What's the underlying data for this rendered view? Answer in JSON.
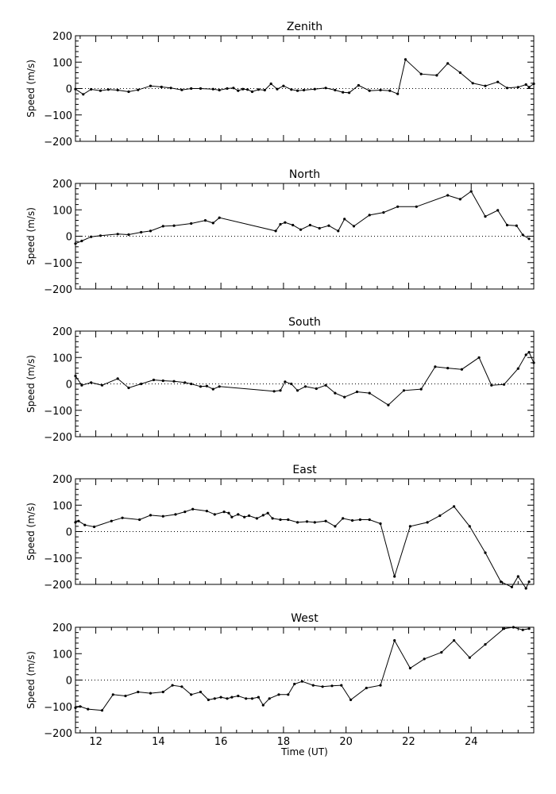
{
  "chart_data": [
    {
      "type": "line",
      "title": "Zenith",
      "xlabel": "",
      "ylabel": "Speed (m/s)",
      "xlim": [
        11.35,
        26.0
      ],
      "ylim": [
        -200,
        200
      ],
      "yticks": [
        "200",
        "100",
        "0",
        "−100",
        "−200"
      ],
      "xticks": [],
      "zero_line": "dotted",
      "x": [
        11.35,
        11.6,
        11.85,
        12.15,
        12.4,
        12.7,
        13.05,
        13.35,
        13.75,
        14.1,
        14.4,
        14.75,
        15.05,
        15.35,
        15.75,
        15.95,
        16.2,
        16.4,
        16.55,
        16.7,
        16.85,
        17.0,
        17.2,
        17.4,
        17.6,
        17.8,
        18.0,
        18.25,
        18.45,
        18.65,
        19.0,
        19.35,
        19.65,
        19.9,
        20.1,
        20.4,
        20.75,
        21.1,
        21.4,
        21.65,
        21.9,
        22.4,
        22.9,
        23.25,
        23.65,
        24.05,
        24.45,
        24.85,
        25.15,
        25.5,
        25.75,
        25.85,
        26.0
      ],
      "values": [
        -2,
        -22,
        -3,
        -8,
        -4,
        -6,
        -12,
        -5,
        10,
        6,
        2,
        -5,
        0,
        0,
        -2,
        -6,
        0,
        2,
        -8,
        -2,
        -4,
        -12,
        -4,
        -6,
        18,
        -2,
        10,
        -4,
        -8,
        -6,
        -2,
        2,
        -6,
        -14,
        -16,
        12,
        -8,
        -6,
        -8,
        -20,
        110,
        55,
        50,
        95,
        60,
        20,
        10,
        25,
        2,
        5,
        15,
        5,
        18
      ]
    },
    {
      "type": "line",
      "title": "North",
      "xlabel": "",
      "ylabel": "Speed (m/s)",
      "xlim": [
        11.35,
        26.0
      ],
      "ylim": [
        -200,
        200
      ],
      "yticks": [
        "200",
        "100",
        "0",
        "−100",
        "−200"
      ],
      "xticks": [],
      "zero_line": "dotted",
      "x": [
        11.35,
        11.55,
        11.85,
        12.15,
        12.7,
        13.05,
        13.45,
        13.75,
        14.15,
        14.5,
        15.05,
        15.5,
        15.75,
        15.95,
        17.75,
        17.9,
        18.05,
        18.3,
        18.55,
        18.85,
        19.15,
        19.45,
        19.75,
        19.95,
        20.25,
        20.75,
        21.2,
        21.65,
        22.25,
        23.25,
        23.65,
        24.0,
        24.45,
        24.85,
        25.15,
        25.45,
        25.65,
        25.85
      ],
      "values": [
        -28,
        -18,
        -2,
        2,
        8,
        6,
        15,
        20,
        38,
        40,
        48,
        60,
        50,
        70,
        20,
        45,
        52,
        42,
        25,
        42,
        30,
        40,
        20,
        65,
        38,
        80,
        90,
        112,
        112,
        155,
        140,
        170,
        75,
        98,
        42,
        40,
        5,
        -10
      ]
    },
    {
      "type": "line",
      "title": "South",
      "xlabel": "",
      "ylabel": "Speed (m/s)",
      "xlim": [
        11.35,
        26.0
      ],
      "ylim": [
        -200,
        200
      ],
      "yticks": [
        "200",
        "100",
        "0",
        "−100",
        "−200"
      ],
      "xticks": [],
      "zero_line": "dotted",
      "x": [
        11.35,
        11.55,
        11.85,
        12.2,
        12.7,
        13.05,
        13.45,
        13.85,
        14.15,
        14.5,
        14.85,
        15.05,
        15.35,
        15.55,
        15.75,
        15.95,
        17.7,
        17.9,
        18.05,
        18.25,
        18.45,
        18.7,
        19.05,
        19.35,
        19.65,
        19.95,
        20.35,
        20.75,
        21.35,
        21.85,
        22.4,
        22.85,
        23.25,
        23.7,
        24.25,
        24.65,
        25.05,
        25.5,
        25.75,
        25.85,
        26.0
      ],
      "values": [
        30,
        -5,
        5,
        -5,
        20,
        -15,
        0,
        15,
        12,
        10,
        5,
        0,
        -10,
        -8,
        -20,
        -10,
        -28,
        -25,
        8,
        0,
        -25,
        -10,
        -18,
        -5,
        -35,
        -50,
        -30,
        -35,
        -80,
        -25,
        -20,
        65,
        60,
        55,
        100,
        -5,
        -2,
        58,
        110,
        120,
        80
      ]
    },
    {
      "type": "line",
      "title": "East",
      "xlabel": "",
      "ylabel": "Speed (m/s)",
      "xlim": [
        11.35,
        26.0
      ],
      "ylim": [
        -200,
        200
      ],
      "yticks": [
        "200",
        "100",
        "0",
        "−100",
        "−200"
      ],
      "xticks": [],
      "zero_line": "dotted",
      "x": [
        11.35,
        11.45,
        11.65,
        11.95,
        12.5,
        12.85,
        13.4,
        13.75,
        14.15,
        14.55,
        14.85,
        15.1,
        15.55,
        15.8,
        16.1,
        16.25,
        16.35,
        16.55,
        16.75,
        16.9,
        17.15,
        17.35,
        17.5,
        17.65,
        17.9,
        18.15,
        18.45,
        18.75,
        19.0,
        19.35,
        19.65,
        19.9,
        20.2,
        20.45,
        20.75,
        21.1,
        21.55,
        22.05,
        22.6,
        23.0,
        23.45,
        23.95,
        24.45,
        24.95,
        25.3,
        25.5,
        25.75,
        25.85
      ],
      "values": [
        35,
        40,
        25,
        18,
        40,
        52,
        45,
        62,
        58,
        65,
        75,
        85,
        78,
        65,
        75,
        70,
        55,
        65,
        55,
        60,
        50,
        62,
        70,
        50,
        45,
        45,
        35,
        38,
        35,
        40,
        20,
        50,
        42,
        45,
        45,
        30,
        -170,
        20,
        35,
        60,
        95,
        20,
        -80,
        -190,
        -210,
        -170,
        -215,
        -190
      ]
    },
    {
      "type": "line",
      "title": "West",
      "xlabel": "Time (UT)",
      "ylabel": "Speed (m/s)",
      "xlim": [
        11.35,
        26.0
      ],
      "ylim": [
        -200,
        200
      ],
      "yticks": [
        "200",
        "100",
        "0",
        "−100",
        "−200"
      ],
      "xticks": [
        "12",
        "14",
        "16",
        "18",
        "20",
        "22",
        "24"
      ],
      "zero_line": "dotted",
      "x": [
        11.35,
        11.5,
        11.75,
        12.2,
        12.55,
        12.95,
        13.35,
        13.75,
        14.15,
        14.45,
        14.75,
        15.05,
        15.35,
        15.6,
        15.8,
        16.0,
        16.2,
        16.35,
        16.55,
        16.8,
        17.0,
        17.2,
        17.35,
        17.55,
        17.85,
        18.15,
        18.35,
        18.6,
        18.95,
        19.25,
        19.55,
        19.85,
        20.15,
        20.65,
        21.1,
        21.55,
        22.05,
        22.5,
        23.05,
        23.45,
        23.95,
        24.45,
        25.05,
        25.35,
        25.65,
        25.85
      ],
      "values": [
        -105,
        -100,
        -110,
        -115,
        -55,
        -60,
        -45,
        -50,
        -45,
        -20,
        -25,
        -55,
        -45,
        -75,
        -70,
        -65,
        -70,
        -65,
        -60,
        -70,
        -70,
        -65,
        -95,
        -70,
        -55,
        -55,
        -15,
        -5,
        -20,
        -25,
        -22,
        -20,
        -75,
        -30,
        -20,
        150,
        45,
        80,
        105,
        150,
        85,
        135,
        195,
        200,
        190,
        195
      ]
    }
  ]
}
